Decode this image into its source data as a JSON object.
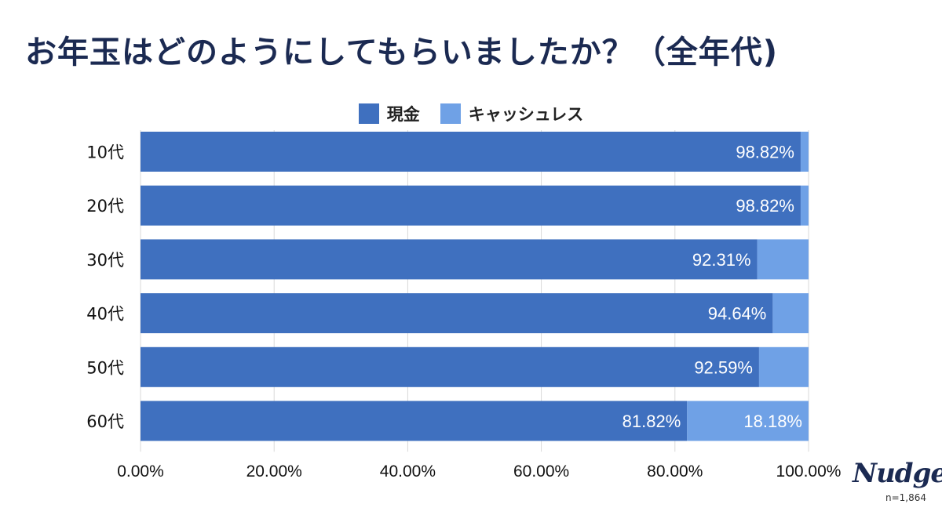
{
  "chart_data": {
    "type": "bar",
    "orientation": "horizontal",
    "stacked": true,
    "title": "お年玉はどのようにしてもらいましたか？（全年代)",
    "categories": [
      "10代",
      "20代",
      "30代",
      "40代",
      "50代",
      "60代"
    ],
    "series": [
      {
        "name": "現金",
        "color": "#3f70bf",
        "values": [
          98.82,
          98.82,
          92.31,
          94.64,
          92.59,
          81.82
        ],
        "labels": [
          "98.82%",
          "98.82%",
          "92.31%",
          "94.64%",
          "92.59%",
          "81.82%"
        ]
      },
      {
        "name": "キャッシュレス",
        "color": "#6fa1e6",
        "values": [
          1.18,
          1.18,
          7.69,
          5.36,
          7.41,
          18.18
        ],
        "labels": [
          "",
          "",
          "",
          "",
          "",
          "18.18%"
        ]
      }
    ],
    "xticks": [
      "0.00%",
      "20.00%",
      "40.00%",
      "60.00%",
      "80.00%",
      "100.00%"
    ],
    "xlim": [
      0,
      100
    ],
    "grid": true,
    "legend": "top-center"
  },
  "brand": {
    "logo": "Nudge",
    "sample": "n=1,864"
  }
}
